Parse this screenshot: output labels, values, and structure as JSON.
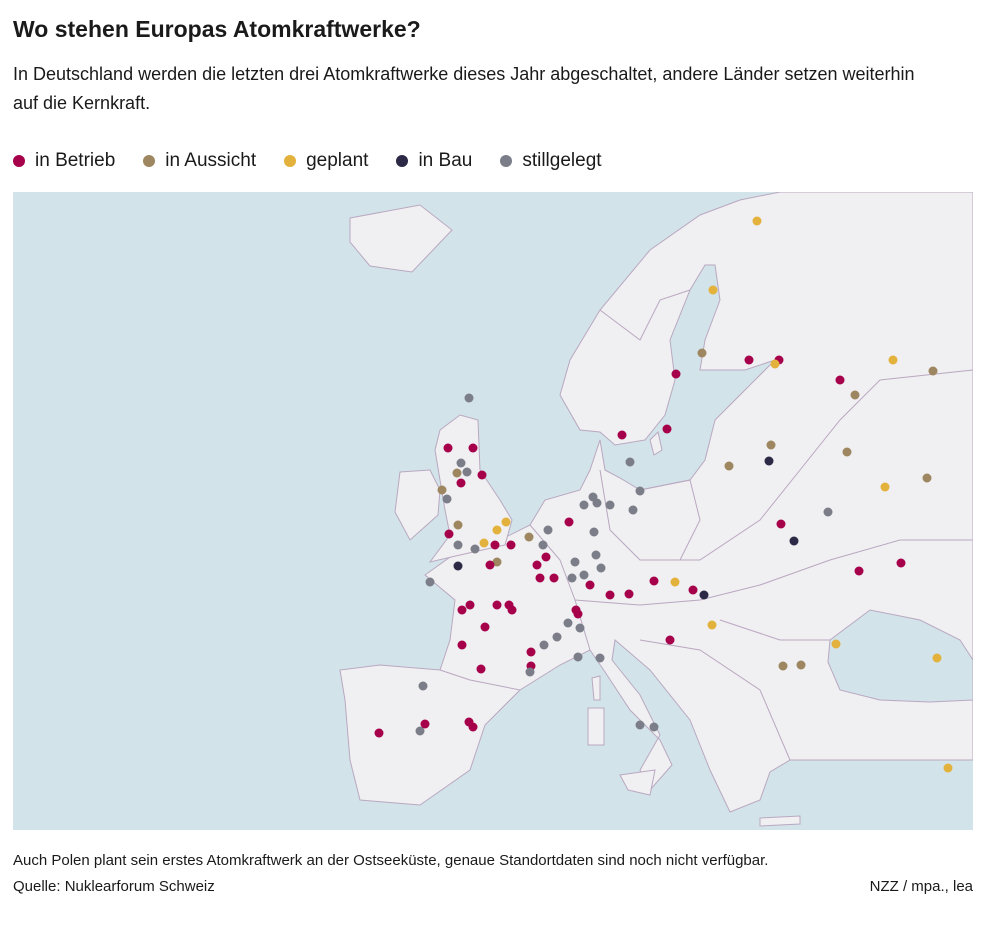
{
  "header": {
    "title": "Wo stehen Europas Atomkraftwerke?",
    "subtitle": "In Deutschland werden die letzten drei Atomkraftwerke dieses Jahr abgeschaltet, andere Länder setzen weiterhin auf die Kernkraft."
  },
  "legend": [
    {
      "label": "in Betrieb",
      "color": "#a6004b"
    },
    {
      "label": "in Aussicht",
      "color": "#9e8760"
    },
    {
      "label": "geplant",
      "color": "#e3b23c"
    },
    {
      "label": "in Bau",
      "color": "#2b2945"
    },
    {
      "label": "stillgelegt",
      "color": "#7b7e88"
    }
  ],
  "footer": {
    "note": "Auch Polen plant sein erstes Atomkraftwerk an der Ostseeküste, genaue Standortdaten sind noch nicht verfügbar.",
    "source": "Quelle: Nuklearforum Schweiz",
    "credit": "NZZ / mpa., lea"
  }
}
